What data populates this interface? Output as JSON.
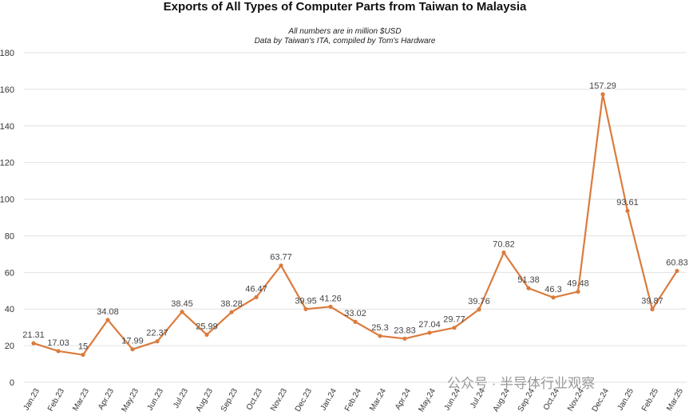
{
  "chart_data": {
    "type": "line",
    "title": "Exports of All Types of Computer Parts from Taiwan to Malaysia",
    "subtitle": [
      "All numbers are in million $USD",
      "Data by Taiwan's ITA, compiled by Tom's Hardware"
    ],
    "watermark": "公众号 · 半导体行业观察",
    "categories": [
      "Jan.23",
      "Feb.23",
      "Mar.23",
      "Apr.23",
      "May.23",
      "Jun.23",
      "Jul.23",
      "Aug.23",
      "Sep.23",
      "Oct.23",
      "Nov.23",
      "Dec.23",
      "Jan.24",
      "Feb.24",
      "Mar.24",
      "Apr.24",
      "May.24",
      "Jun.24",
      "Jul.24",
      "Aug.24",
      "Sep.24",
      "Oct.24",
      "Nov.24",
      "Dec.24",
      "Jan.25",
      "Feb.25",
      "Mar.25"
    ],
    "series": [
      {
        "color": "#db7b3d",
        "values": [
          21.31,
          17.03,
          15,
          34.08,
          17.99,
          22.37,
          38.45,
          25.99,
          38.28,
          46.47,
          63.77,
          39.95,
          41.26,
          33.02,
          25.3,
          23.83,
          27.04,
          29.77,
          39.76,
          70.82,
          51.38,
          46.3,
          49.48,
          157.29,
          93.61,
          39.87,
          60.83
        ]
      }
    ],
    "ylim": [
      0,
      180
    ],
    "yticks": [
      0,
      20,
      40,
      60,
      80,
      100,
      120,
      140,
      160,
      180
    ],
    "grid": true
  }
}
